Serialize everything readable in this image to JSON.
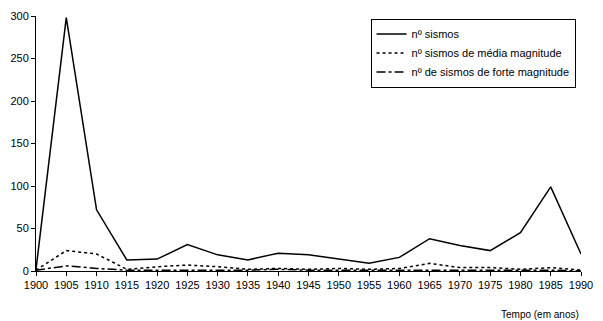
{
  "chart_data": {
    "type": "line",
    "x_label": "Tempo (em anos)",
    "x": [
      1900,
      1905,
      1910,
      1915,
      1920,
      1925,
      1930,
      1935,
      1940,
      1945,
      1950,
      1955,
      1960,
      1965,
      1970,
      1975,
      1980,
      1985,
      1990
    ],
    "series": [
      {
        "name": "nº sismos",
        "color": "#000000",
        "line_style": "solid",
        "values": [
          2,
          298,
          72,
          13,
          14,
          31,
          19,
          13,
          21,
          19,
          14,
          9,
          16,
          38,
          30,
          24,
          45,
          99,
          20
        ]
      },
      {
        "name": "nº sismos de média magnitude",
        "color": "#000000",
        "line_style": "dot",
        "values": [
          1,
          24,
          20,
          2,
          5,
          7,
          5,
          2,
          3,
          2,
          3,
          2,
          3,
          9,
          4,
          4,
          2,
          4,
          1
        ]
      },
      {
        "name": "nº de sismos de forte magnitude",
        "color": "#000000",
        "line_style": "dashdot",
        "values": [
          1,
          6,
          3,
          1,
          1,
          1,
          1,
          1,
          2,
          1,
          1,
          1,
          1,
          1,
          1,
          1,
          1,
          1,
          0
        ]
      }
    ],
    "xlim": [
      1900,
      1990
    ],
    "xticks": [
      1900,
      1905,
      1910,
      1915,
      1920,
      1925,
      1930,
      1935,
      1940,
      1945,
      1950,
      1955,
      1960,
      1965,
      1970,
      1975,
      1980,
      1985,
      1990
    ],
    "ylim": [
      0,
      300
    ],
    "yticks": [
      0,
      50,
      100,
      150,
      200,
      250,
      300
    ],
    "grid": false,
    "legend": "top-right"
  }
}
